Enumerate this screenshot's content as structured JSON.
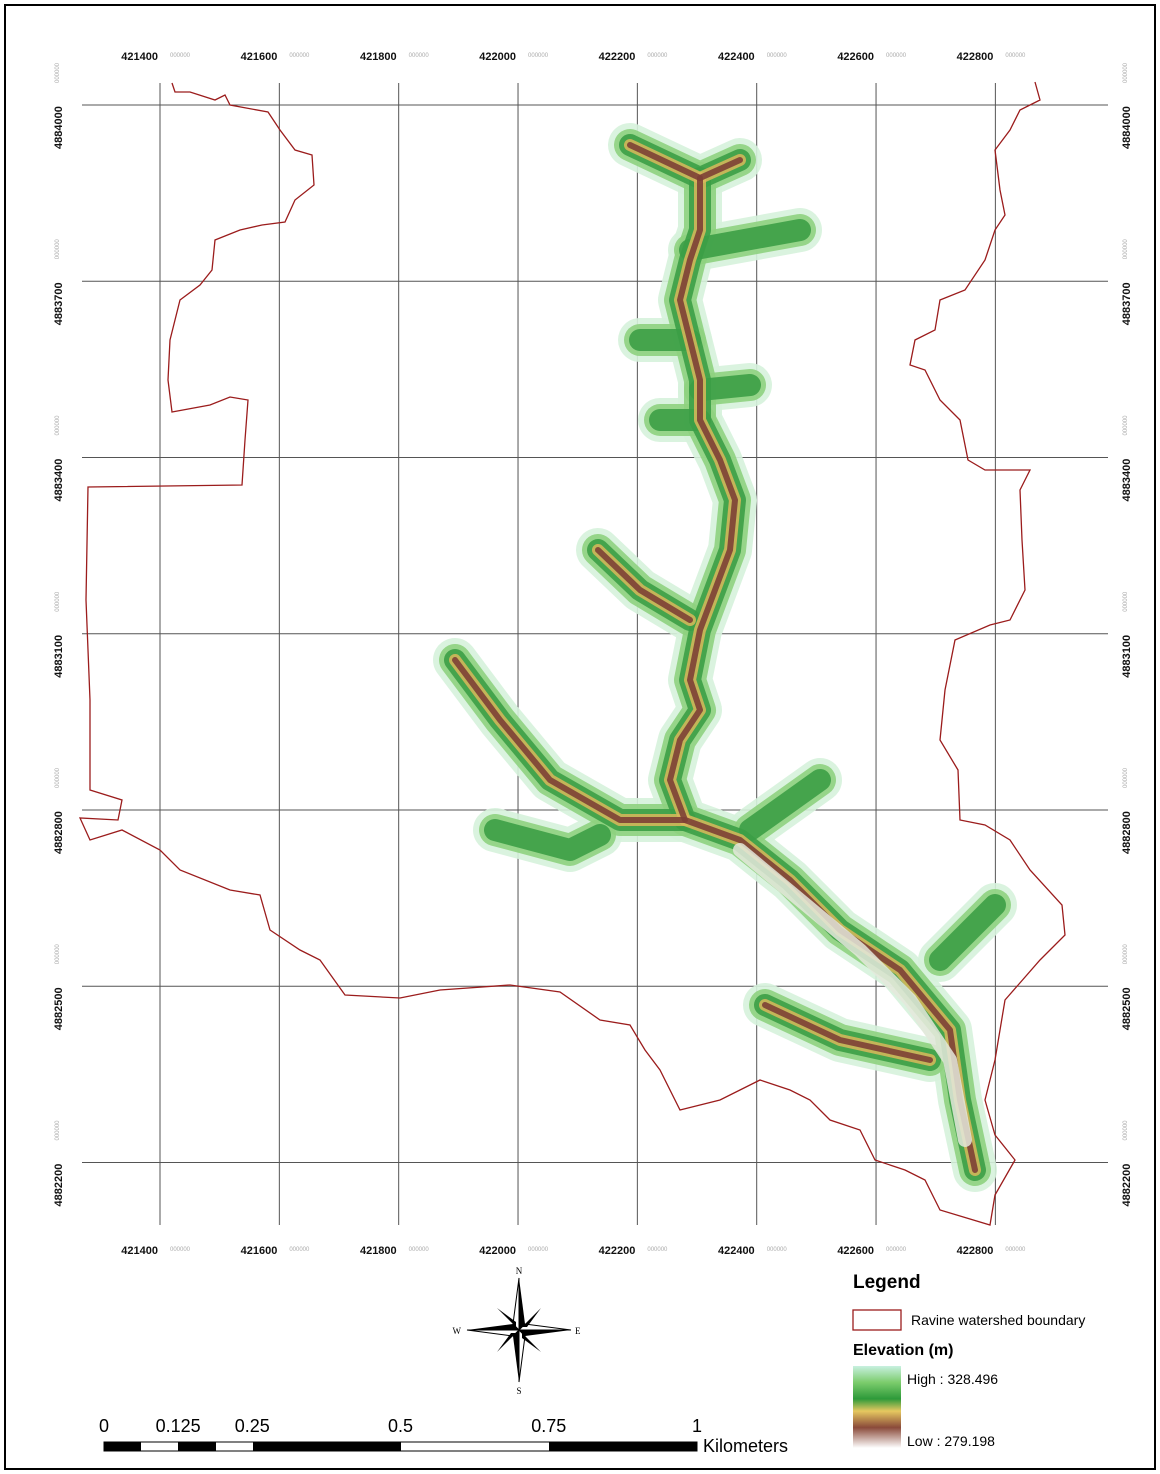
{
  "map": {
    "x_ticks": [
      421400,
      421600,
      421800,
      422000,
      422200,
      422400,
      422600,
      422800
    ],
    "y_ticks": [
      4884000,
      4883700,
      4883400,
      4883100,
      4882800,
      4882500,
      4882200
    ],
    "tick_suffix": "000000",
    "legend": {
      "title": "Legend",
      "boundary": "Ravine watershed boundary",
      "elevation_title": "Elevation (m)",
      "high": "High : 328.496",
      "low": "Low : 279.198"
    },
    "compass": {
      "north": "N",
      "east": "E",
      "south": "S",
      "west": "W"
    },
    "scale_bar": {
      "ticks": [
        0,
        0.125,
        0.25,
        0.5,
        0.75,
        1
      ],
      "unit": "Kilometers"
    }
  }
}
